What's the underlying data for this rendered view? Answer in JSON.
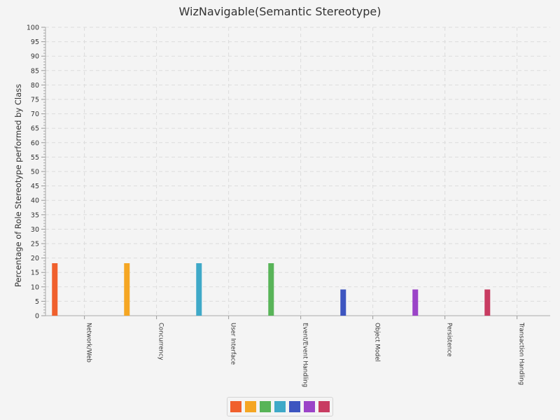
{
  "chart_data": {
    "type": "bar",
    "title": "WizNavigable(Semantic Stereotype)",
    "ylabel": "Percentage of Role Stereotype performed by Class",
    "xlabel": "",
    "ylim": [
      0,
      100
    ],
    "y_major_step": 5,
    "grid": true,
    "categories": [
      "Network/Web",
      "Concurrency",
      "User Interface",
      "Event/Event Handling",
      "Object Model",
      "Persistence",
      "Transaction Handling"
    ],
    "values": [
      18.2,
      18.2,
      18.2,
      18.2,
      9.1,
      9.1,
      9.1
    ],
    "colors": [
      "#f0602d",
      "#f5a623",
      "#3fa9c8",
      "#58b458",
      "#3d55c0",
      "#9b44c8",
      "#c83c62"
    ],
    "legend": {
      "placement": "bottom-center",
      "colors": [
        "#f0602d",
        "#f5a623",
        "#58b458",
        "#3fa9c8",
        "#3d55c0",
        "#9b44c8",
        "#c83c62"
      ]
    }
  }
}
